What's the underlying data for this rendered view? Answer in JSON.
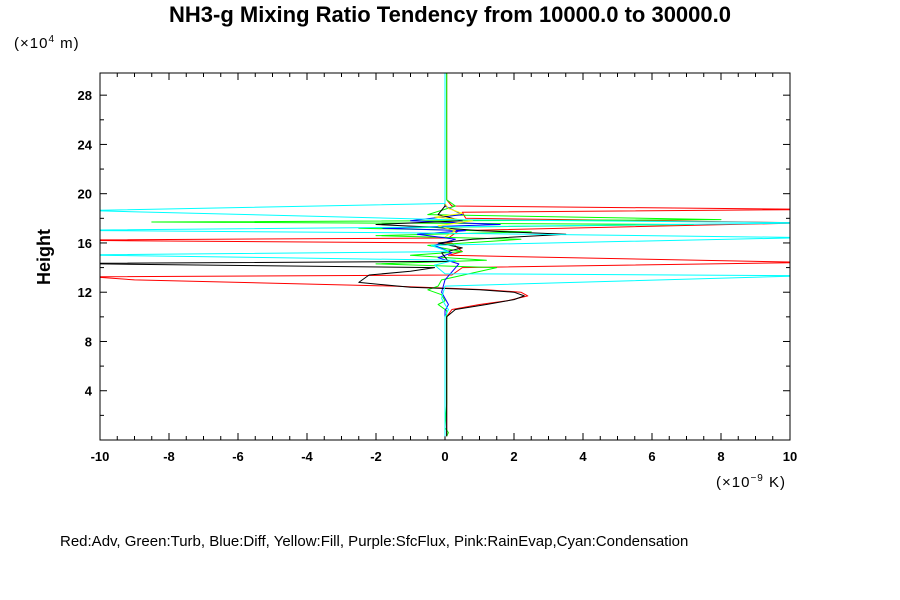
{
  "chart_data": {
    "type": "line",
    "title": "NH3-g Mixing Ratio Tendency from 10000.0 to 30000.0",
    "ylabel": "Height",
    "y_unit_prefix": "(×10",
    "y_unit_exp": "4",
    "y_unit_suffix": " m)",
    "x_unit_prefix": "(×10",
    "x_unit_exp": "−9",
    "x_unit_suffix": " K)",
    "xlim": [
      -10,
      10
    ],
    "ylim": [
      0,
      29.8
    ],
    "x_ticks": [
      -10,
      -8,
      -6,
      -4,
      -2,
      0,
      2,
      4,
      6,
      8,
      10
    ],
    "y_ticks": [
      4,
      8,
      12,
      16,
      20,
      24,
      28
    ],
    "legend_text": "Red:Adv, Green:Turb, Blue:Diff, Yellow:Fill, Purple:SfcFlux, Pink:RainEvap,Cyan:Condensation",
    "series": [
      {
        "color": "#ff0000",
        "points": [
          [
            0.05,
            0.3
          ],
          [
            0.05,
            2
          ],
          [
            0.05,
            4
          ],
          [
            0.05,
            6
          ],
          [
            0.05,
            8
          ],
          [
            0.05,
            10
          ],
          [
            0.2,
            10.6
          ],
          [
            1.0,
            11.0
          ],
          [
            1.8,
            11.3
          ],
          [
            2.4,
            11.7
          ],
          [
            2.2,
            12.0
          ],
          [
            1.2,
            12.2
          ],
          [
            0.3,
            12.3
          ],
          [
            -1.5,
            12.5
          ],
          [
            -9,
            13.0
          ],
          [
            -10,
            13.2
          ],
          [
            -10,
            13.25
          ],
          [
            0.2,
            13.4
          ],
          [
            0.5,
            14.0
          ],
          [
            10,
            14.4
          ],
          [
            10,
            14.45
          ],
          [
            0.1,
            15.0
          ],
          [
            0.5,
            15.3
          ],
          [
            0.2,
            16.0
          ],
          [
            -10,
            16.2
          ],
          [
            -10,
            16.25
          ],
          [
            0.1,
            16.4
          ],
          [
            0.4,
            17.0
          ],
          [
            10,
            17.6
          ],
          [
            10,
            17.65
          ],
          [
            0.6,
            18.0
          ],
          [
            0.5,
            18.5
          ],
          [
            10,
            18.7
          ],
          [
            10,
            18.75
          ],
          [
            0.2,
            19.0
          ],
          [
            0.05,
            19.5
          ],
          [
            0.05,
            29.8
          ]
        ]
      },
      {
        "color": "#00ff00",
        "points": [
          [
            0.05,
            0.3
          ],
          [
            0.1,
            0.6
          ],
          [
            0.0,
            1.0
          ],
          [
            0.05,
            3
          ],
          [
            0.05,
            6
          ],
          [
            0.05,
            9
          ],
          [
            0.05,
            10.5
          ],
          [
            -0.2,
            11.0
          ],
          [
            0.0,
            11.3
          ],
          [
            -0.1,
            11.8
          ],
          [
            -0.5,
            12.2
          ],
          [
            -0.2,
            12.5
          ],
          [
            -0.1,
            13.0
          ],
          [
            1.5,
            14.0
          ],
          [
            -2.0,
            14.3
          ],
          [
            1.2,
            14.6
          ],
          [
            -1.0,
            15.0
          ],
          [
            0.5,
            15.3
          ],
          [
            -0.5,
            15.8
          ],
          [
            2.2,
            16.3
          ],
          [
            -2.0,
            16.6
          ],
          [
            2.5,
            16.9
          ],
          [
            -2.5,
            17.2
          ],
          [
            7.2,
            17.5
          ],
          [
            -8.5,
            17.7
          ],
          [
            8.0,
            17.9
          ],
          [
            -0.5,
            18.3
          ],
          [
            0.3,
            19.0
          ],
          [
            0.05,
            19.5
          ],
          [
            0.05,
            29.8
          ]
        ]
      },
      {
        "color": "#0000ff",
        "points": [
          [
            0.0,
            0.3
          ],
          [
            0.0,
            5
          ],
          [
            0.0,
            10.5
          ],
          [
            0.1,
            11.0
          ],
          [
            0.0,
            11.5
          ],
          [
            -0.1,
            12.0
          ],
          [
            0.0,
            13.0
          ],
          [
            0.4,
            14.3
          ],
          [
            -0.2,
            14.8
          ],
          [
            0.2,
            15.2
          ],
          [
            -0.3,
            15.8
          ],
          [
            0.3,
            16.3
          ],
          [
            -0.8,
            16.7
          ],
          [
            0.6,
            17.0
          ],
          [
            -1.8,
            17.2
          ],
          [
            1.6,
            17.5
          ],
          [
            -1.0,
            17.8
          ],
          [
            0.5,
            18.3
          ],
          [
            0.0,
            19.0
          ],
          [
            0.0,
            29.8
          ]
        ]
      },
      {
        "color": "#000000",
        "points": [
          [
            0.05,
            0.3
          ],
          [
            0.05,
            5
          ],
          [
            0.05,
            10.0
          ],
          [
            0.3,
            10.6
          ],
          [
            1.2,
            11.0
          ],
          [
            2.0,
            11.4
          ],
          [
            2.3,
            11.7
          ],
          [
            2.0,
            12.0
          ],
          [
            1.0,
            12.2
          ],
          [
            -1.0,
            12.4
          ],
          [
            -2.5,
            12.8
          ],
          [
            -2.2,
            13.4
          ],
          [
            -1.0,
            13.7
          ],
          [
            -0.3,
            14.0
          ],
          [
            -10,
            14.3
          ],
          [
            -10,
            14.35
          ],
          [
            0.1,
            14.5
          ],
          [
            -0.1,
            15.2
          ],
          [
            0.5,
            15.6
          ],
          [
            -0.2,
            16.0
          ],
          [
            0.8,
            16.3
          ],
          [
            3.5,
            16.7
          ],
          [
            1.0,
            17.0
          ],
          [
            -0.5,
            17.3
          ],
          [
            -2.0,
            17.5
          ],
          [
            0.5,
            17.8
          ],
          [
            -0.2,
            18.3
          ],
          [
            0.0,
            19.0
          ],
          [
            0.0,
            29.8
          ]
        ]
      },
      {
        "color": "#ffff00",
        "points": [
          [
            0.0,
            16.5
          ],
          [
            0.3,
            17.0
          ],
          [
            -0.2,
            17.4
          ],
          [
            0.8,
            17.8
          ],
          [
            -0.3,
            18.1
          ],
          [
            0.5,
            18.4
          ],
          [
            0.1,
            18.8
          ],
          [
            0.0,
            19.2
          ]
        ]
      },
      {
        "color": "#00ffff",
        "points": [
          [
            0.0,
            0.3
          ],
          [
            0.0,
            5
          ],
          [
            0.0,
            10.0
          ],
          [
            0.1,
            10.6
          ],
          [
            0.0,
            11.0
          ],
          [
            -0.1,
            11.5
          ],
          [
            0.0,
            12.5
          ],
          [
            10,
            13.3
          ],
          [
            10,
            13.35
          ],
          [
            0.0,
            13.5
          ],
          [
            -0.3,
            14.2
          ],
          [
            0.3,
            14.6
          ],
          [
            -10,
            15.0
          ],
          [
            -10,
            15.05
          ],
          [
            0.1,
            15.3
          ],
          [
            -0.4,
            15.8
          ],
          [
            10,
            16.4
          ],
          [
            10,
            16.45
          ],
          [
            -0.2,
            16.8
          ],
          [
            -10,
            17.0
          ],
          [
            -10,
            17.05
          ],
          [
            0.2,
            17.3
          ],
          [
            10,
            17.6
          ],
          [
            10,
            17.65
          ],
          [
            0.0,
            17.9
          ],
          [
            -10,
            18.6
          ],
          [
            -10,
            18.65
          ],
          [
            0.0,
            19.2
          ],
          [
            0.0,
            19.6
          ],
          [
            0.0,
            29.8
          ]
        ]
      }
    ]
  }
}
